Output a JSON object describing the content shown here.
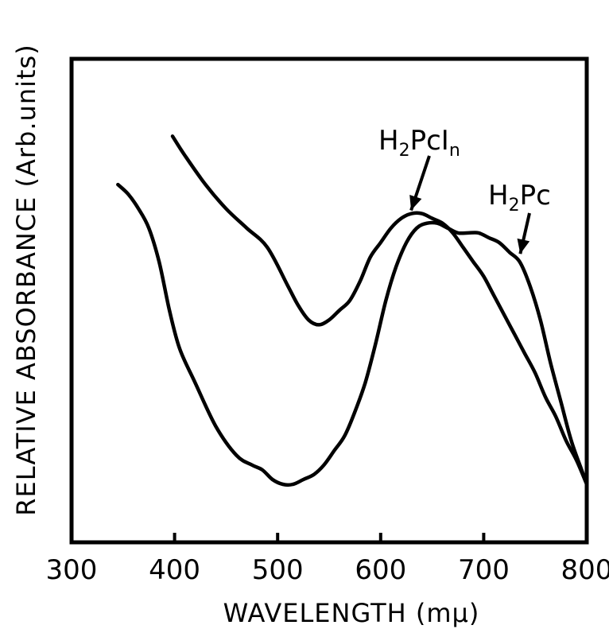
{
  "chart_data": {
    "type": "line",
    "title": "",
    "xlabel": "WAVELENGTH (mμ)",
    "ylabel": "RELATIVE ABSORBANCE (Arb.units)",
    "xlim": [
      300,
      800
    ],
    "ylim": [
      0,
      1
    ],
    "x_ticks": [
      "300",
      "400",
      "500",
      "600",
      "700",
      "800"
    ],
    "y_ticks": [],
    "grid": false,
    "series": [
      {
        "name": "H2PcIn",
        "x": [
          398,
          410,
          430,
          450,
          470,
          490,
          510,
          520,
          530,
          540,
          550,
          560,
          570,
          580,
          590,
          600,
          610,
          620,
          630,
          640,
          650,
          660,
          670,
          680,
          690,
          700,
          710,
          720,
          730,
          740,
          750,
          760,
          770,
          780,
          790,
          800
        ],
        "y": [
          0.84,
          0.8,
          0.74,
          0.69,
          0.65,
          0.61,
          0.53,
          0.49,
          0.46,
          0.45,
          0.46,
          0.48,
          0.5,
          0.54,
          0.59,
          0.62,
          0.65,
          0.67,
          0.68,
          0.68,
          0.67,
          0.66,
          0.64,
          0.61,
          0.58,
          0.55,
          0.51,
          0.47,
          0.43,
          0.39,
          0.35,
          0.3,
          0.26,
          0.21,
          0.17,
          0.12
        ]
      },
      {
        "name": "H2Pc",
        "x": [
          345,
          355,
          365,
          375,
          385,
          395,
          405,
          420,
          440,
          460,
          475,
          485,
          495,
          505,
          515,
          525,
          535,
          545,
          555,
          565,
          575,
          585,
          595,
          605,
          615,
          625,
          635,
          645,
          655,
          665,
          675,
          685,
          695,
          705,
          715,
          725,
          735,
          745,
          755,
          765,
          775,
          785,
          795,
          800
        ],
        "y": [
          0.74,
          0.72,
          0.69,
          0.65,
          0.58,
          0.48,
          0.4,
          0.33,
          0.24,
          0.18,
          0.16,
          0.15,
          0.13,
          0.12,
          0.12,
          0.13,
          0.14,
          0.16,
          0.19,
          0.22,
          0.27,
          0.33,
          0.41,
          0.5,
          0.57,
          0.62,
          0.65,
          0.66,
          0.66,
          0.65,
          0.64,
          0.64,
          0.64,
          0.63,
          0.62,
          0.6,
          0.58,
          0.53,
          0.46,
          0.37,
          0.29,
          0.21,
          0.15,
          0.12
        ]
      }
    ],
    "annotations": [
      {
        "label_main": "H",
        "label_sub": "2",
        "label_tail": "PcI",
        "label_sub2": "n",
        "target_x": 628,
        "target_y": 0.68
      },
      {
        "label_main": "H",
        "label_sub": "2",
        "label_tail": "Pc",
        "target_x": 737,
        "target_y": 0.6
      }
    ]
  }
}
